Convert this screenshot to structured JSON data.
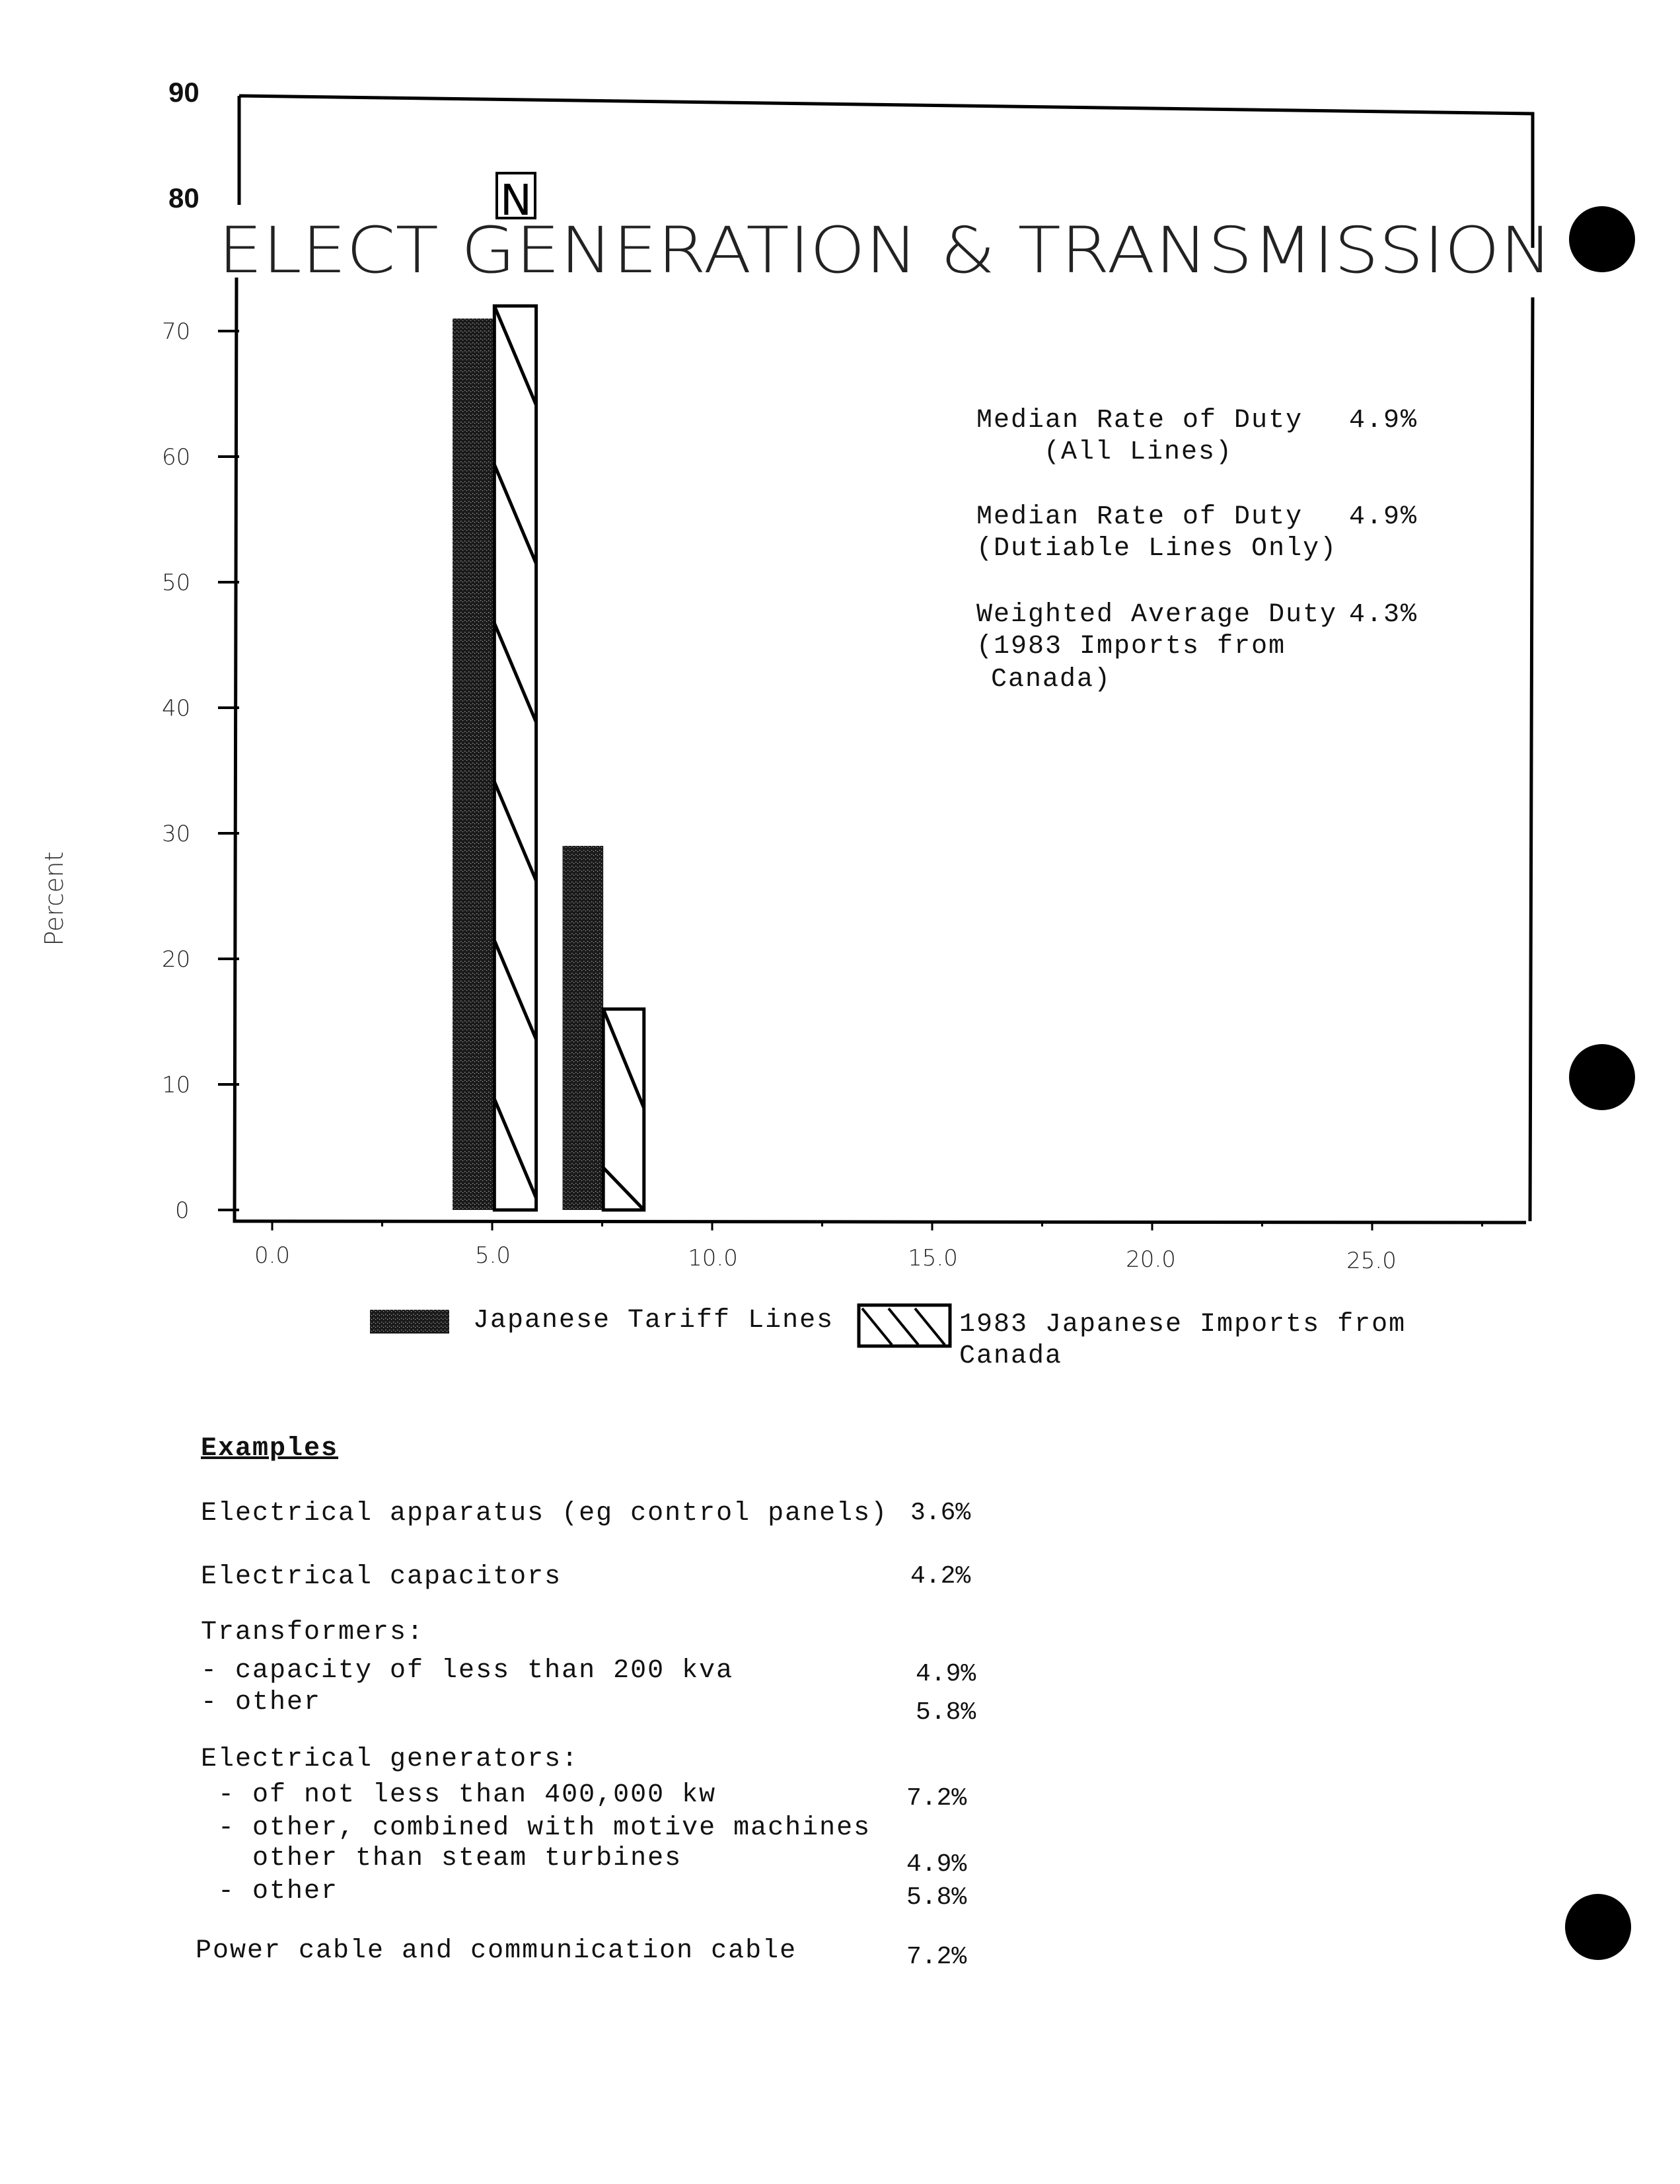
{
  "chart_data": {
    "type": "bar",
    "title": "ELECT GENERATION & TRANSMISSION",
    "title_marker": "N",
    "ylabel": "Percent",
    "xlabel": "",
    "ylim": [
      0,
      90
    ],
    "xlim": [
      -0.8,
      28.5
    ],
    "y_ticks": [
      "90",
      "80",
      "70",
      "60",
      "50",
      "40",
      "30",
      "20",
      "10",
      "0"
    ],
    "x_ticks": [
      "0.0",
      "5.0",
      "10.0",
      "15.0",
      "20.0",
      "25.0"
    ],
    "grid": false,
    "legend_position": "bottom",
    "bins": [
      [
        4.1,
        6.0
      ],
      [
        6.6,
        8.45
      ]
    ],
    "series": [
      {
        "name": "Japanese Tariff Lines",
        "pattern": "stipple",
        "color": "#1a1a1a",
        "values": [
          71,
          29
        ]
      },
      {
        "name": "1983 Japanese Imports from Canada",
        "pattern": "hatch",
        "color": "#000000",
        "values": [
          72,
          16
        ]
      }
    ],
    "annotations": [
      {
        "label": "Median Rate of Duty",
        "sub": "(All Lines)",
        "value": "4.9%"
      },
      {
        "label": "Median Rate of Duty",
        "sub": "(Dutiable Lines Only)",
        "value": "4.9%"
      },
      {
        "label": "Weighted Average Duty",
        "sub": "(1983 Imports from",
        "sub2": "Canada)",
        "value": "4.3%"
      }
    ]
  },
  "legend": {
    "item1": "Japanese Tariff Lines",
    "item2_line1": "1983 Japanese Imports from",
    "item2_line2": "Canada"
  },
  "examples": {
    "heading": "Examples",
    "rows": [
      {
        "label": "Electrical apparatus (eg control panels)",
        "value": "3.6%"
      },
      {
        "label": "Electrical capacitors",
        "value": "4.2%"
      },
      {
        "label": "Transformers:"
      },
      {
        "label": "- capacity of less than 200 kva",
        "value": "4.9%"
      },
      {
        "label": "- other",
        "value": "5.8%"
      },
      {
        "label": "Electrical generators:"
      },
      {
        "label": " - of not less than 400,000 kw",
        "value": "7.2%"
      },
      {
        "label": " - other, combined with motive machines"
      },
      {
        "label": "   other than steam turbines",
        "value": "4.9%"
      },
      {
        "label": " - other",
        "value": "5.8%"
      },
      {
        "label": "Power cable and communication cable",
        "value": "7.2%"
      }
    ]
  }
}
